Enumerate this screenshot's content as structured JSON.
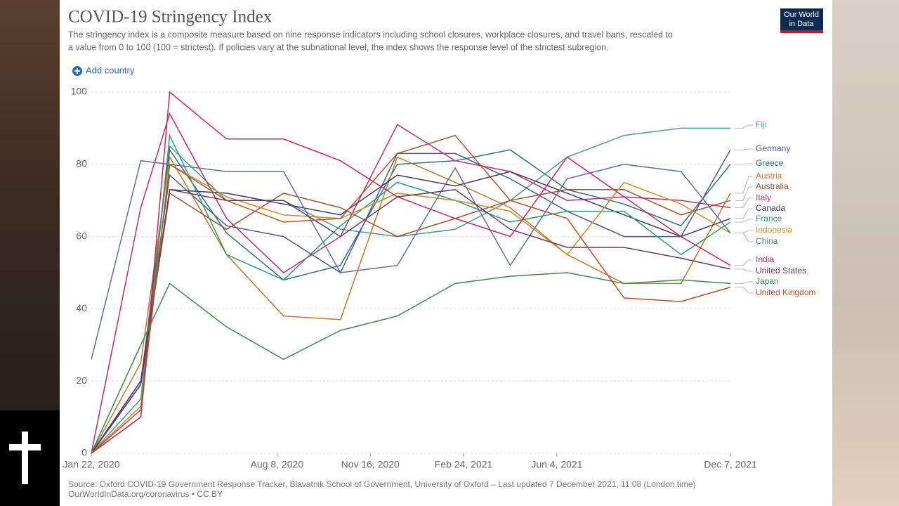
{
  "chart_data": {
    "type": "line",
    "title": "COVID-19 Stringency Index",
    "subtitle": [
      "The stringency index is a composite measure based on nine response indicators including school closures, workplace closures, and travel bans, rescaled to",
      "a value from 0 to 100 (100 = strictest). If policies vary at the subnational level, the index shows the response level of the strictest subregion."
    ],
    "logo": [
      "Our World",
      "in Data"
    ],
    "add_button": "Add country",
    "source": [
      "Source: Oxford COVID-19 Government Response Tracker, Blavatnik School of Government, University of Oxford – Last updated 7 December 2021, 11:08 (London time)",
      "OurWorldInData.org/coronavirus • CC BY"
    ],
    "x": [
      "2020-01-22",
      "2020-03-15",
      "2020-04-15",
      "2020-06-15",
      "2020-08-15",
      "2020-10-15",
      "2020-12-15",
      "2021-02-15",
      "2021-04-15",
      "2021-06-15",
      "2021-08-15",
      "2021-10-15",
      "2021-12-07"
    ],
    "xlim": [
      "2020-01-22",
      "2021-12-07"
    ],
    "xticks": [
      {
        "value": "2020-01-22",
        "label": "Jan 22, 2020"
      },
      {
        "value": "2020-08-08",
        "label": "Aug 8, 2020"
      },
      {
        "value": "2020-11-16",
        "label": "Nov 16, 2020"
      },
      {
        "value": "2021-02-24",
        "label": "Feb 24, 2021"
      },
      {
        "value": "2021-06-04",
        "label": "Jun 4, 2021"
      },
      {
        "value": "2021-12-07",
        "label": "Dec 7, 2021"
      }
    ],
    "ylim": [
      0,
      100
    ],
    "yticks": [
      0,
      20,
      40,
      60,
      80,
      100
    ],
    "grid": true,
    "series": [
      {
        "name": "Fiji",
        "color": "#4a9a9a",
        "values": [
          0,
          15,
          85,
          70,
          70,
          62,
          60,
          62,
          70,
          82,
          88,
          90,
          90
        ]
      },
      {
        "name": "Germany",
        "color": "#4c5a8c",
        "values": [
          0,
          20,
          77,
          63,
          60,
          50,
          83,
          83,
          76,
          67,
          60,
          60,
          84
        ]
      },
      {
        "name": "Greece",
        "color": "#2f6f7f",
        "values": [
          0,
          19,
          84,
          61,
          48,
          52,
          80,
          81,
          84,
          73,
          69,
          63,
          80
        ]
      },
      {
        "name": "Austria",
        "color": "#c1782b",
        "values": [
          0,
          25,
          82,
          55,
          38,
          37,
          82,
          75,
          68,
          55,
          47,
          47,
          72
        ]
      },
      {
        "name": "Australia",
        "color": "#a0522d",
        "values": [
          0,
          19,
          72,
          62,
          72,
          68,
          60,
          65,
          70,
          73,
          73,
          66,
          70
        ]
      },
      {
        "name": "Italy",
        "color": "#b8306e",
        "values": [
          0,
          68,
          94,
          65,
          50,
          60,
          91,
          81,
          78,
          70,
          71,
          70,
          68
        ]
      },
      {
        "name": "Canada",
        "color": "#3a3a6a",
        "values": [
          0,
          20,
          73,
          72,
          69,
          66,
          77,
          74,
          78,
          72,
          66,
          60,
          65
        ]
      },
      {
        "name": "France",
        "color": "#2a9c74",
        "values": [
          0,
          10,
          88,
          55,
          48,
          63,
          75,
          70,
          64,
          67,
          67,
          55,
          64
        ]
      },
      {
        "name": "Indonesia",
        "color": "#d08a2a",
        "values": [
          0,
          13,
          80,
          71,
          66,
          65,
          72,
          70,
          67,
          55,
          75,
          69,
          61
        ]
      },
      {
        "name": "China",
        "color": "#5b6fa0",
        "values": [
          26,
          81,
          80,
          78,
          78,
          50,
          52,
          79,
          52,
          76,
          80,
          78,
          61
        ]
      },
      {
        "name": "India",
        "color": "#d0245a",
        "values": [
          0,
          10,
          100,
          87,
          87,
          81,
          71,
          65,
          60,
          82,
          71,
          60,
          52
        ]
      },
      {
        "name": "United States",
        "color": "#6b3a5c",
        "values": [
          0,
          19,
          73,
          70,
          70,
          60,
          71,
          73,
          62,
          57,
          57,
          54,
          51
        ]
      },
      {
        "name": "Japan",
        "color": "#3a8a50",
        "values": [
          0,
          30,
          47,
          35,
          26,
          34,
          38,
          47,
          49,
          50,
          47,
          48,
          47
        ]
      },
      {
        "name": "United Kingdom",
        "color": "#b5502b",
        "values": [
          0,
          12,
          80,
          70,
          64,
          65,
          83,
          88,
          70,
          65,
          43,
          42,
          46
        ]
      }
    ]
  }
}
